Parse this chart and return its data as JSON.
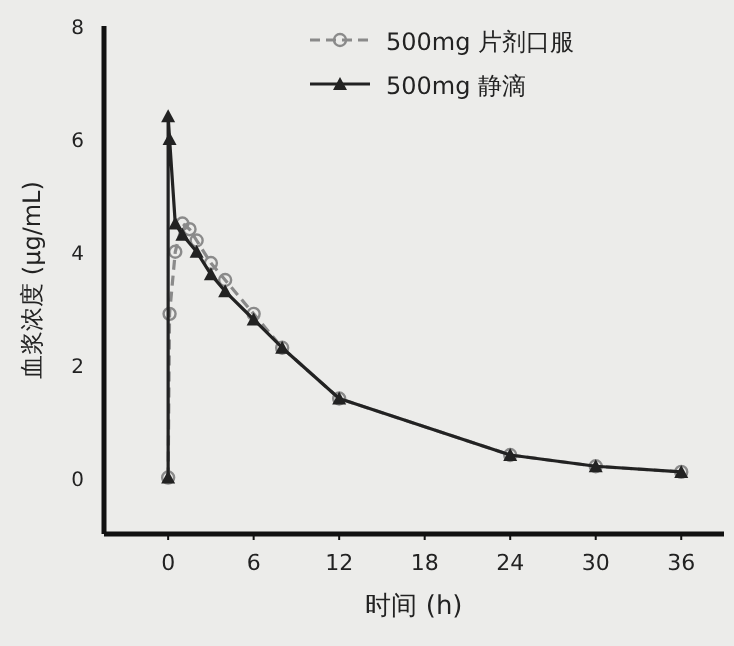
{
  "chart_data": {
    "type": "line",
    "xlabel": "时间 (h)",
    "ylabel": "血浆浓度 (μg/mL)",
    "xlim": [
      -4.5,
      39
    ],
    "xticks": [
      0,
      6,
      12,
      18,
      24,
      30,
      36
    ],
    "ylim": [
      -1,
      8
    ],
    "yticks": [
      0,
      2,
      4,
      6,
      8
    ],
    "grid": false,
    "legend": "top right",
    "series": [
      {
        "name": "500mg 片剂口服",
        "color": "#8a8a8a",
        "marker": "circle",
        "line_style": "dashed",
        "x": [
          0,
          0.1,
          0.5,
          1,
          1.5,
          2,
          3,
          4,
          6,
          8,
          12,
          24,
          30,
          36
        ],
        "values": [
          0,
          2.9,
          4.0,
          4.5,
          4.4,
          4.2,
          3.8,
          3.5,
          2.9,
          2.3,
          1.4,
          0.4,
          0.2,
          0.1
        ]
      },
      {
        "name": "500mg 静滴",
        "color": "#222222",
        "marker": "triangle",
        "line_style": "solid",
        "x": [
          0,
          0,
          0.1,
          0.5,
          1,
          2,
          3,
          4,
          6,
          8,
          12,
          24,
          30,
          36
        ],
        "values": [
          0,
          6.4,
          6.0,
          4.5,
          4.3,
          4.0,
          3.6,
          3.3,
          2.8,
          2.3,
          1.4,
          0.4,
          0.2,
          0.1
        ]
      }
    ]
  }
}
